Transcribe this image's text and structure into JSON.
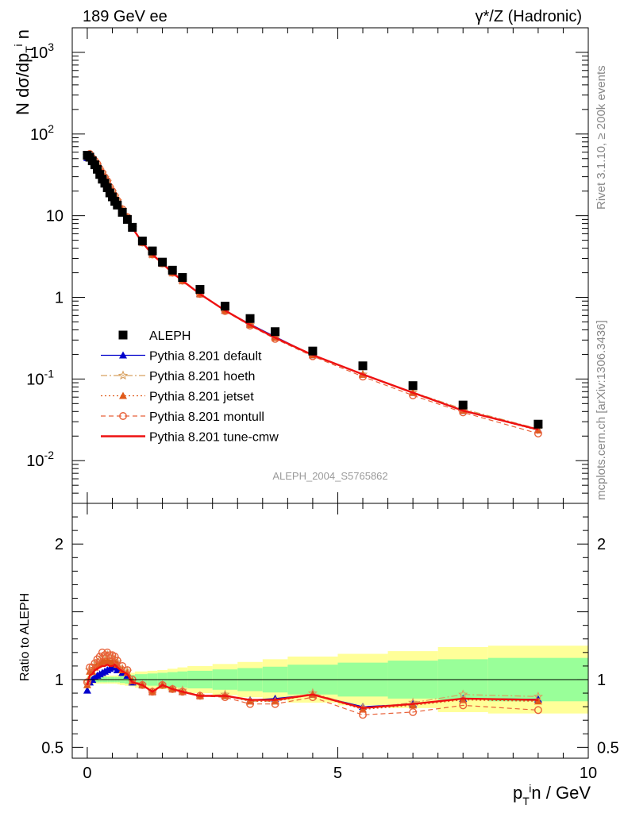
{
  "header": {
    "left_title": "189 GeV ee",
    "right_title_main": "γ*/Z (Hadronic)"
  },
  "side_labels": {
    "rivet": "Rivet 3.1.10, ≥ 200k events",
    "mcplots": "mcplots.cern.ch [arXiv:1306.3436]"
  },
  "analysis_id": "ALEPH_2004_S5765862",
  "chart_data": [
    {
      "panel": "main",
      "type": "scatter",
      "yscale": "log",
      "ylabel": "N dσ/dp_T^i n",
      "xlim": [
        -0.3,
        10.0
      ],
      "ylim": [
        0.003,
        2000
      ],
      "y_ticks": [
        "10^-2",
        "10^-1",
        "1",
        "10",
        "10^2",
        "10^3"
      ],
      "legend_position": "bottom-left",
      "x": [
        0.0,
        0.05,
        0.1,
        0.15,
        0.2,
        0.25,
        0.3,
        0.35,
        0.4,
        0.45,
        0.5,
        0.55,
        0.6,
        0.7,
        0.8,
        0.9,
        1.1,
        1.3,
        1.5,
        1.7,
        1.9,
        2.25,
        2.75,
        3.25,
        3.75,
        4.5,
        5.5,
        6.5,
        7.5,
        9.0
      ],
      "series": [
        {
          "name": "ALEPH",
          "color": "#000000",
          "marker": "square",
          "values": [
            55,
            52,
            47,
            42,
            37,
            32,
            28,
            25,
            22,
            19,
            17,
            15,
            13.5,
            11,
            9.0,
            7.2,
            4.9,
            3.7,
            2.7,
            2.15,
            1.75,
            1.25,
            0.78,
            0.55,
            0.38,
            0.22,
            0.145,
            0.083,
            0.048,
            0.028
          ]
        },
        {
          "name": "Pythia 8.201 default",
          "color": "#0000cc",
          "marker": "triangle",
          "dash": "",
          "values": [
            51,
            51,
            47,
            43,
            38,
            33,
            29.5,
            26.5,
            23.5,
            20.5,
            18.5,
            16.5,
            14.5,
            11.5,
            9.3,
            7.0,
            4.7,
            3.35,
            2.6,
            2.0,
            1.6,
            1.1,
            0.69,
            0.47,
            0.33,
            0.196,
            0.115,
            0.068,
            0.041,
            0.024
          ]
        },
        {
          "name": "Pythia 8.201 hoeth",
          "color": "#d8a060",
          "marker": "star",
          "dash": "8,3,2,3",
          "values": [
            54,
            56,
            50,
            46,
            42,
            36.5,
            33,
            29,
            26,
            22,
            19.5,
            17.2,
            15.2,
            11.9,
            9.5,
            7.1,
            4.7,
            3.35,
            2.6,
            2.0,
            1.6,
            1.1,
            0.69,
            0.46,
            0.32,
            0.198,
            0.114,
            0.069,
            0.043,
            0.0245
          ]
        },
        {
          "name": "Pythia 8.201 jetset",
          "color": "#e05a1a",
          "marker": "triangle",
          "dash": "2,3",
          "values": [
            53,
            55,
            50,
            46,
            41,
            36,
            32,
            28,
            25,
            21.5,
            19.2,
            17,
            15,
            11.8,
            9.4,
            7.1,
            4.7,
            3.35,
            2.6,
            2.0,
            1.6,
            1.1,
            0.69,
            0.46,
            0.32,
            0.196,
            0.113,
            0.068,
            0.041,
            0.0235
          ]
        },
        {
          "name": "Pythia 8.201 montull",
          "color": "#e8623a",
          "marker": "circle",
          "dash": "6,4",
          "values": [
            54,
            57,
            51,
            47,
            43,
            37.5,
            33.5,
            29.5,
            26.5,
            22.5,
            20,
            17.5,
            15.3,
            12,
            9.6,
            7.2,
            4.7,
            3.35,
            2.6,
            2.0,
            1.6,
            1.1,
            0.68,
            0.45,
            0.31,
            0.19,
            0.107,
            0.063,
            0.039,
            0.0215
          ]
        },
        {
          "name": "Pythia 8.201 tune-cmw",
          "color": "#ee1111",
          "marker": "none",
          "dash": "",
          "values": [
            53,
            54,
            49,
            45,
            40,
            35,
            31,
            27.5,
            24.5,
            21,
            18.8,
            16.7,
            14.8,
            11.7,
            9.4,
            7.1,
            4.7,
            3.35,
            2.6,
            2.0,
            1.6,
            1.1,
            0.69,
            0.46,
            0.32,
            0.197,
            0.114,
            0.068,
            0.041,
            0.024
          ]
        }
      ]
    },
    {
      "panel": "ratio",
      "type": "line",
      "ylabel": "Ratio to ALEPH",
      "xlabel": "p_T^i n / GeV",
      "xlim": [
        -0.3,
        10.0
      ],
      "ylim": [
        0.42,
        2.3
      ],
      "y_ticks": [
        "0.5",
        "1",
        "2"
      ],
      "x_ticks": [
        "0",
        "5",
        "10"
      ],
      "reference_line": 1.0,
      "bands": {
        "bin_edges": [
          0.0,
          0.05,
          0.1,
          0.15,
          0.2,
          0.25,
          0.3,
          0.35,
          0.4,
          0.45,
          0.5,
          0.55,
          0.6,
          0.65,
          0.75,
          0.85,
          0.95,
          1.2,
          1.4,
          1.6,
          1.8,
          2.0,
          2.5,
          3.0,
          3.5,
          4.0,
          5.0,
          6.0,
          7.0,
          8.0,
          10.0
        ],
        "inner_color": "#99ff99",
        "outer_color": "#ffff99",
        "inner_halfwidth": [
          0.02,
          0.02,
          0.02,
          0.02,
          0.02,
          0.02,
          0.02,
          0.02,
          0.02,
          0.02,
          0.02,
          0.02,
          0.02,
          0.025,
          0.03,
          0.035,
          0.04,
          0.045,
          0.05,
          0.055,
          0.06,
          0.065,
          0.075,
          0.085,
          0.095,
          0.11,
          0.125,
          0.14,
          0.15,
          0.16
        ],
        "outer_halfwidth": [
          0.03,
          0.03,
          0.03,
          0.03,
          0.03,
          0.03,
          0.03,
          0.03,
          0.03,
          0.03,
          0.03,
          0.03,
          0.035,
          0.04,
          0.045,
          0.05,
          0.06,
          0.065,
          0.07,
          0.08,
          0.09,
          0.1,
          0.115,
          0.13,
          0.15,
          0.17,
          0.19,
          0.21,
          0.24,
          0.25
        ]
      },
      "x": [
        0.0,
        0.05,
        0.1,
        0.15,
        0.2,
        0.25,
        0.3,
        0.35,
        0.4,
        0.45,
        0.5,
        0.55,
        0.6,
        0.7,
        0.8,
        0.9,
        1.1,
        1.3,
        1.5,
        1.7,
        1.9,
        2.25,
        2.75,
        3.25,
        3.75,
        4.5,
        5.5,
        6.5,
        7.5,
        9.0
      ],
      "series": [
        {
          "name": "Pythia 8.201 default",
          "color": "#0000cc",
          "marker": "triangle",
          "dash": "",
          "values": [
            0.92,
            0.98,
            1.0,
            1.02,
            1.03,
            1.04,
            1.05,
            1.06,
            1.07,
            1.08,
            1.09,
            1.1,
            1.07,
            1.05,
            1.03,
            0.98,
            0.96,
            0.91,
            0.96,
            0.93,
            0.91,
            0.88,
            0.88,
            0.85,
            0.86,
            0.89,
            0.8,
            0.82,
            0.86,
            0.855
          ]
        },
        {
          "name": "Pythia 8.201 hoeth",
          "color": "#d8a060",
          "marker": "star",
          "dash": "8,3,2,3",
          "values": [
            0.98,
            1.07,
            1.06,
            1.1,
            1.12,
            1.14,
            1.16,
            1.16,
            1.18,
            1.16,
            1.15,
            1.15,
            1.13,
            1.08,
            1.06,
            0.99,
            0.96,
            0.91,
            0.96,
            0.93,
            0.92,
            0.88,
            0.89,
            0.84,
            0.84,
            0.9,
            0.79,
            0.83,
            0.89,
            0.875
          ]
        },
        {
          "name": "Pythia 8.201 jetset",
          "color": "#e05a1a",
          "marker": "triangle",
          "dash": "2,3",
          "values": [
            0.96,
            1.06,
            1.06,
            1.09,
            1.11,
            1.12,
            1.14,
            1.13,
            1.14,
            1.13,
            1.13,
            1.13,
            1.11,
            1.07,
            1.05,
            0.99,
            0.96,
            0.91,
            0.96,
            0.93,
            0.91,
            0.88,
            0.88,
            0.84,
            0.84,
            0.89,
            0.78,
            0.81,
            0.85,
            0.84
          ]
        },
        {
          "name": "Pythia 8.201 montull",
          "color": "#e8623a",
          "marker": "circle",
          "dash": "6,4",
          "values": [
            0.98,
            1.09,
            1.09,
            1.12,
            1.15,
            1.17,
            1.2,
            1.18,
            1.2,
            1.18,
            1.18,
            1.17,
            1.14,
            1.1,
            1.07,
            1.0,
            0.96,
            0.91,
            0.96,
            0.93,
            0.91,
            0.88,
            0.87,
            0.82,
            0.82,
            0.87,
            0.74,
            0.76,
            0.81,
            0.775
          ]
        },
        {
          "name": "Pythia 8.201 tune-cmw",
          "color": "#ee1111",
          "marker": "none",
          "dash": "",
          "values": [
            0.96,
            1.03,
            1.04,
            1.07,
            1.08,
            1.09,
            1.1,
            1.1,
            1.11,
            1.1,
            1.1,
            1.11,
            1.09,
            1.06,
            1.04,
            0.98,
            0.96,
            0.91,
            0.96,
            0.93,
            0.91,
            0.88,
            0.88,
            0.85,
            0.85,
            0.89,
            0.79,
            0.82,
            0.86,
            0.85
          ]
        }
      ]
    }
  ]
}
